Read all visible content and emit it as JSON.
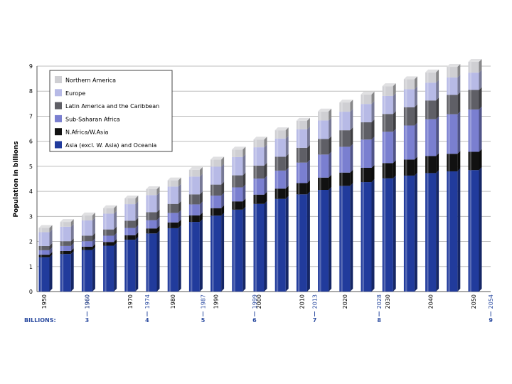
{
  "chart_data": {
    "type": "bar",
    "stacked": true,
    "ylabel": "Population in billions",
    "ylim": [
      0,
      9
    ],
    "yticks": [
      "0",
      "1",
      "2",
      "3",
      "4",
      "5",
      "6",
      "7",
      "8",
      "9"
    ],
    "grid": true,
    "legend_placement": "top-left",
    "x": [
      1950,
      1955,
      1960,
      1965,
      1970,
      1975,
      1980,
      1985,
      1990,
      1995,
      2000,
      2005,
      2010,
      2015,
      2020,
      2025,
      2030,
      2035,
      2040,
      2045,
      2050
    ],
    "year_labels": [
      "1950",
      "1960",
      "1970",
      "1980",
      "1990",
      "2000",
      "2010",
      "2020",
      "2030",
      "2040",
      "2050"
    ],
    "milestones": [
      {
        "year": "1960",
        "billions": "3",
        "x": 1960
      },
      {
        "year": "1974",
        "billions": "4",
        "x": 1974
      },
      {
        "year": "1987",
        "billions": "5",
        "x": 1987
      },
      {
        "year": "1999",
        "billions": "6",
        "x": 1999
      },
      {
        "year": "2013",
        "billions": "7",
        "x": 2013
      },
      {
        "year": "2028",
        "billions": "8",
        "x": 2028
      },
      {
        "year": "2054",
        "billions": "9",
        "x": 2054
      }
    ],
    "billions_label": "BILLIONS:",
    "series": [
      {
        "name": "Asia (excl. W. Asia) and Oceania",
        "color": "#213b9c",
        "values": [
          1.37,
          1.5,
          1.66,
          1.83,
          2.07,
          2.32,
          2.53,
          2.78,
          3.03,
          3.27,
          3.5,
          3.7,
          3.88,
          4.06,
          4.22,
          4.37,
          4.52,
          4.63,
          4.73,
          4.8,
          4.85
        ]
      },
      {
        "name": "N.Africa/W.Asia",
        "color": "#111111",
        "values": [
          0.1,
          0.12,
          0.13,
          0.15,
          0.18,
          0.2,
          0.23,
          0.26,
          0.3,
          0.33,
          0.37,
          0.41,
          0.45,
          0.49,
          0.53,
          0.57,
          0.61,
          0.64,
          0.68,
          0.7,
          0.73
        ]
      },
      {
        "name": "Sub-Saharan Africa",
        "color": "#7a7fd0",
        "values": [
          0.18,
          0.2,
          0.22,
          0.25,
          0.29,
          0.33,
          0.38,
          0.44,
          0.5,
          0.56,
          0.64,
          0.72,
          0.82,
          0.92,
          1.03,
          1.13,
          1.25,
          1.36,
          1.47,
          1.58,
          1.69
        ]
      },
      {
        "name": "Latin America and the Caribbean",
        "color": "#5f5f66",
        "values": [
          0.17,
          0.19,
          0.22,
          0.25,
          0.29,
          0.32,
          0.36,
          0.4,
          0.44,
          0.48,
          0.52,
          0.55,
          0.59,
          0.62,
          0.66,
          0.69,
          0.71,
          0.73,
          0.75,
          0.77,
          0.78
        ]
      },
      {
        "name": "Europe",
        "color": "#b7bae6",
        "values": [
          0.55,
          0.58,
          0.61,
          0.63,
          0.66,
          0.68,
          0.69,
          0.71,
          0.72,
          0.73,
          0.73,
          0.73,
          0.74,
          0.74,
          0.74,
          0.73,
          0.72,
          0.72,
          0.71,
          0.7,
          0.69
        ]
      },
      {
        "name": "Northern America",
        "color": "#cfcfd3",
        "values": [
          0.17,
          0.19,
          0.2,
          0.22,
          0.23,
          0.24,
          0.25,
          0.27,
          0.28,
          0.3,
          0.31,
          0.33,
          0.34,
          0.36,
          0.37,
          0.38,
          0.39,
          0.4,
          0.41,
          0.42,
          0.43
        ]
      }
    ],
    "legend_order": [
      5,
      4,
      3,
      2,
      1,
      0
    ]
  }
}
